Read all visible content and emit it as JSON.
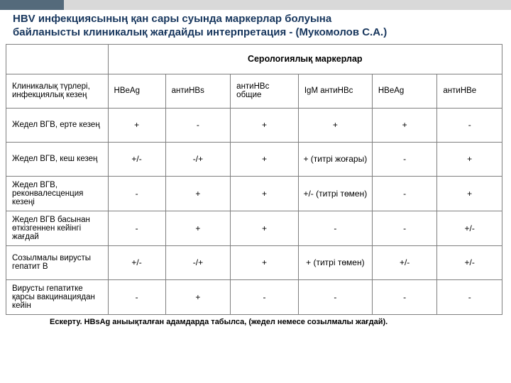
{
  "title_l1": "HBV инфекциясының қан сары суында маркерлар болуына",
  "title_l2": "байланысты клиникалық жағдайды интерпретация - (Мукомолов С.А.)",
  "sero_header": "Серологиялық маркерлар",
  "row_header": "Клиникалық түрлері, инфекциялық кезең",
  "markers": [
    "HBeAg",
    "антиHBs",
    "антиHBc общие",
    "IgM антиHBc",
    "HBeAg",
    "антиHBe"
  ],
  "rows": [
    {
      "label": "Жедел ВГВ, ерте кезең",
      "vals": [
        "+",
        "-",
        "+",
        "+",
        "+",
        "-"
      ]
    },
    {
      "label": "Жедел ВГВ, кеш кезең",
      "vals": [
        "+/-",
        "-/+",
        "+",
        "+ (титрі жоғары)",
        "-",
        "+"
      ]
    },
    {
      "label": "Жедел ВГВ, реконвалесценция кезеңі",
      "vals": [
        "-",
        "+",
        "+",
        "+/- (титрі төмен)",
        "-",
        "+"
      ]
    },
    {
      "label": "Жедел ВГВ басынан өткізгеннен кейінгі жағдай",
      "vals": [
        "-",
        "+",
        "+",
        "-",
        "-",
        "+/-"
      ]
    },
    {
      "label": "Созылмалы вирусты гепатит В",
      "vals": [
        "+/-",
        "-/+",
        "+",
        "+ (титрі төмен)",
        "+/-",
        "+/-"
      ]
    },
    {
      "label": "Вирусты гепатитке қарсы  вакцинациядан кейін",
      "vals": [
        "-",
        "+",
        "-",
        "-",
        "-",
        "-"
      ]
    }
  ],
  "footnote": "Ескерту. HBsAg аныықталған адамдарда табылса, (жедел немесе созылмалы жағдай)."
}
